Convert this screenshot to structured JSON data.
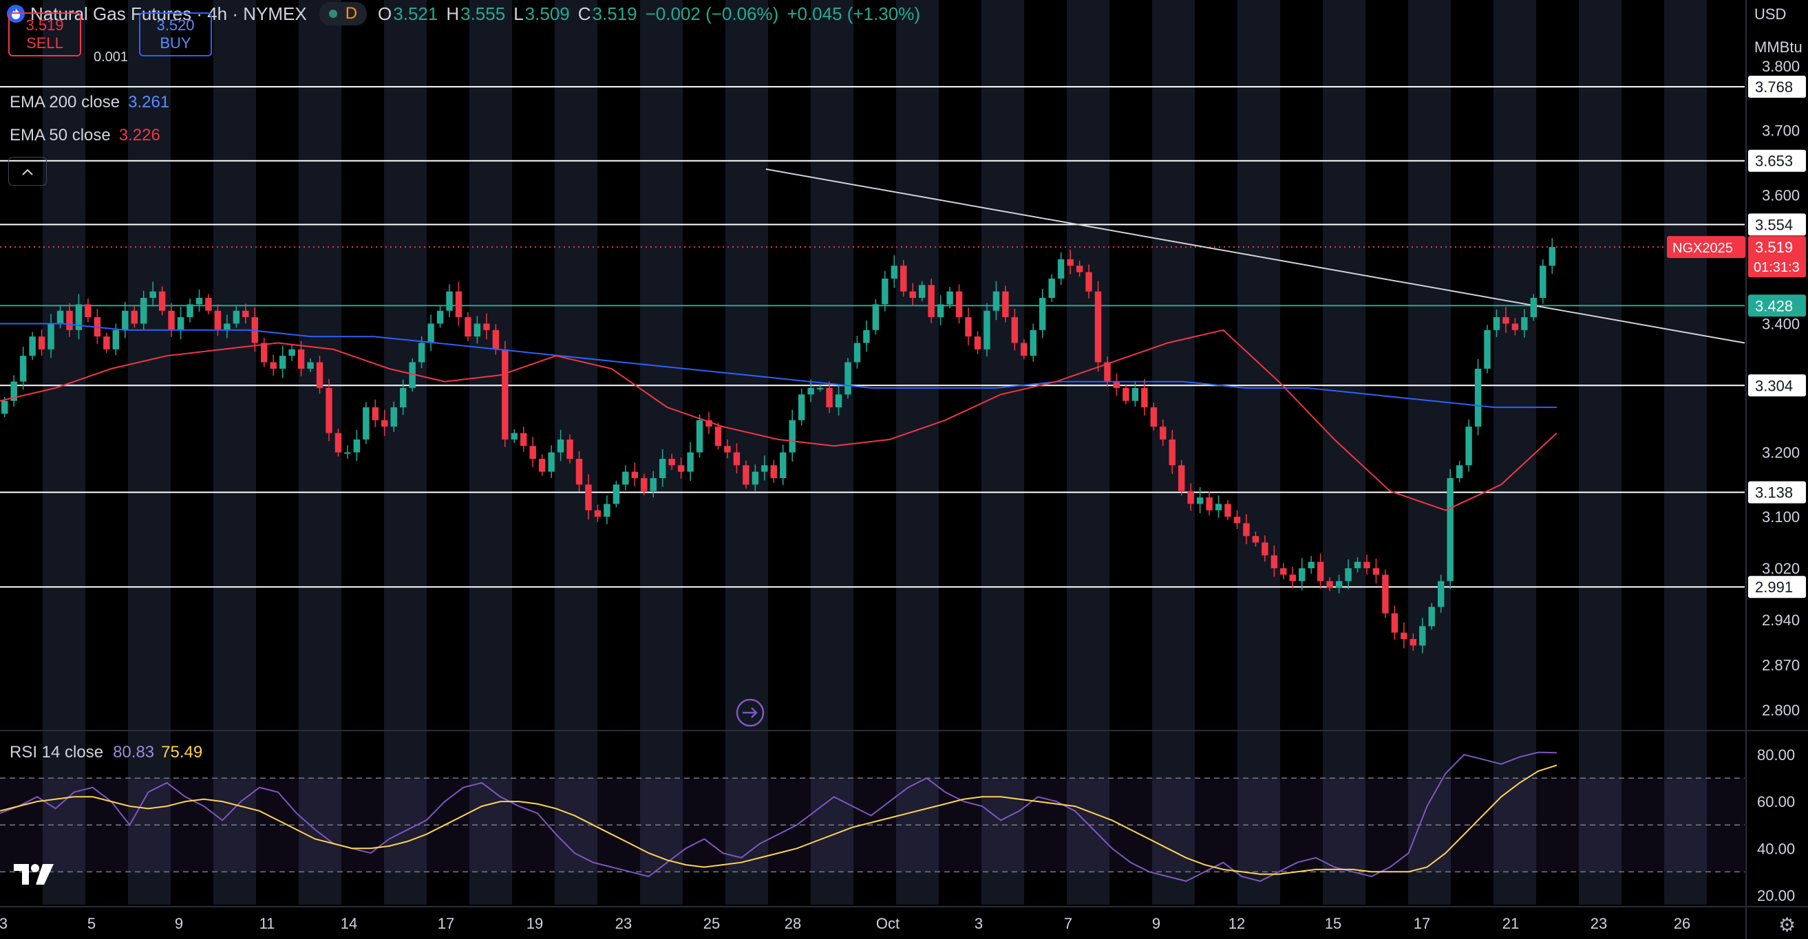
{
  "header": {
    "title": "Natural Gas Futures · 4h · NYMEX",
    "status_label": "D",
    "open_label": "O",
    "open": "3.521",
    "high_label": "H",
    "high": "3.555",
    "low_label": "L",
    "low": "3.509",
    "close_label": "C",
    "close": "3.519",
    "change": "−0.002 (−0.06%)",
    "change2": "+0.045 (+1.30%)"
  },
  "trade": {
    "sell_price": "3.519",
    "sell_label": "SELL",
    "spread": "0.001",
    "buy_price": "3.520",
    "buy_label": "BUY"
  },
  "indicators": {
    "ema200": {
      "label": "EMA 200 close",
      "value": "3.261",
      "color": "#2962ff"
    },
    "ema50": {
      "label": "EMA 50 close",
      "value": "3.226",
      "color": "#f23645"
    },
    "rsi": {
      "label": "RSI 14 close",
      "value": "80.83",
      "ma_value": "75.49",
      "color": "#7e57c2",
      "ma_color": "#ffd54f"
    }
  },
  "axis": {
    "currency": "USD",
    "unit": "MMBtu"
  },
  "colors": {
    "up": "#22ab94",
    "down": "#f23645",
    "background": "#000000",
    "grid": "#131722"
  },
  "icons": [
    "tradingview-logo",
    "gear-icon",
    "chevron-up-icon",
    "scroll-right-icon"
  ],
  "chart_data": [
    {
      "type": "candlestick",
      "title": "Natural Gas Futures · 4h · NYMEX",
      "x_tick_labels": [
        "3",
        "5",
        "9",
        "11",
        "14",
        "17",
        "19",
        "23",
        "25",
        "28",
        "Oct",
        "3",
        "7",
        "9",
        "12",
        "15",
        "17",
        "21",
        "23",
        "26"
      ],
      "y_tick_labels": [
        "3.800",
        "3.700",
        "3.600",
        "3.400",
        "3.200",
        "3.100",
        "3.020",
        "2.940",
        "2.870",
        "2.800"
      ],
      "ylim": [
        2.77,
        3.86
      ],
      "horizontal_levels": [
        {
          "value": 3.768,
          "label": "3.768",
          "color": "#ffffff"
        },
        {
          "value": 3.653,
          "label": "3.653",
          "color": "#ffffff"
        },
        {
          "value": 3.554,
          "label": "3.554",
          "color": "#ffffff"
        },
        {
          "value": 3.428,
          "label": "3.428",
          "color": "#22ab94"
        },
        {
          "value": 3.304,
          "label": "3.304",
          "color": "#ffffff"
        },
        {
          "value": 3.138,
          "label": "3.138",
          "color": "#ffffff"
        },
        {
          "value": 2.991,
          "label": "2.991",
          "color": "#ffffff"
        }
      ],
      "last_price": {
        "symbol": "NGX2025",
        "value": "3.519",
        "countdown": "01:31:3"
      },
      "trendline": {
        "start": [
          0.439,
          3.64
        ],
        "end": [
          1.0,
          3.37
        ]
      },
      "closes": [
        3.28,
        3.31,
        3.35,
        3.38,
        3.36,
        3.4,
        3.42,
        3.39,
        3.43,
        3.41,
        3.38,
        3.36,
        3.39,
        3.42,
        3.4,
        3.44,
        3.45,
        3.42,
        3.39,
        3.41,
        3.43,
        3.44,
        3.42,
        3.39,
        3.4,
        3.42,
        3.41,
        3.37,
        3.34,
        3.33,
        3.35,
        3.36,
        3.33,
        3.34,
        3.3,
        3.23,
        3.2,
        3.2,
        3.22,
        3.27,
        3.25,
        3.24,
        3.27,
        3.3,
        3.34,
        3.37,
        3.4,
        3.42,
        3.45,
        3.41,
        3.38,
        3.4,
        3.39,
        3.36,
        3.22,
        3.23,
        3.21,
        3.19,
        3.17,
        3.2,
        3.22,
        3.19,
        3.15,
        3.11,
        3.1,
        3.12,
        3.15,
        3.17,
        3.16,
        3.14,
        3.16,
        3.19,
        3.18,
        3.17,
        3.2,
        3.25,
        3.24,
        3.21,
        3.2,
        3.18,
        3.15,
        3.17,
        3.18,
        3.16,
        3.2,
        3.25,
        3.29,
        3.3,
        3.3,
        3.27,
        3.29,
        3.34,
        3.37,
        3.39,
        3.43,
        3.47,
        3.49,
        3.45,
        3.44,
        3.46,
        3.41,
        3.43,
        3.45,
        3.41,
        3.38,
        3.36,
        3.42,
        3.45,
        3.41,
        3.37,
        3.35,
        3.39,
        3.44,
        3.47,
        3.5,
        3.49,
        3.48,
        3.45,
        3.34,
        3.31,
        3.3,
        3.28,
        3.3,
        3.27,
        3.24,
        3.22,
        3.18,
        3.14,
        3.12,
        3.13,
        3.11,
        3.12,
        3.1,
        3.09,
        3.07,
        3.06,
        3.04,
        3.02,
        3.01,
        3.0,
        3.02,
        3.03,
        3.0,
        2.99,
        3.0,
        3.02,
        3.03,
        3.02,
        3.01,
        2.95,
        2.92,
        2.91,
        2.9,
        2.93,
        2.96,
        3.0,
        3.16,
        3.18,
        3.24,
        3.33,
        3.39,
        3.41,
        3.4,
        3.39,
        3.41,
        3.44,
        3.49,
        3.519
      ],
      "series": [
        {
          "name": "EMA 200 close",
          "color": "#2962ff",
          "values": [
            3.4,
            3.4,
            3.39,
            3.39,
            3.39,
            3.38,
            3.38,
            3.37,
            3.36,
            3.35,
            3.34,
            3.33,
            3.32,
            3.31,
            3.3,
            3.3,
            3.3,
            3.31,
            3.31,
            3.31,
            3.3,
            3.3,
            3.29,
            3.28,
            3.27,
            3.27
          ]
        },
        {
          "name": "EMA 50 close",
          "color": "#f23645",
          "values": [
            3.28,
            3.3,
            3.33,
            3.35,
            3.36,
            3.37,
            3.36,
            3.33,
            3.31,
            3.32,
            3.35,
            3.33,
            3.27,
            3.24,
            3.22,
            3.21,
            3.22,
            3.25,
            3.29,
            3.31,
            3.34,
            3.37,
            3.39,
            3.31,
            3.22,
            3.14,
            3.11,
            3.15,
            3.23
          ]
        }
      ]
    },
    {
      "type": "line",
      "title": "RSI 14 close",
      "y_tick_labels": [
        "80.00",
        "60.00",
        "40.00",
        "20.00"
      ],
      "ylim": [
        16,
        85
      ],
      "guide_levels": [
        70,
        50,
        30
      ],
      "series": [
        {
          "name": "RSI 14 close",
          "color": "#7e57c2",
          "values": [
            55,
            58,
            62,
            57,
            64,
            66,
            60,
            50,
            64,
            68,
            62,
            58,
            52,
            60,
            66,
            64,
            55,
            48,
            42,
            40,
            38,
            44,
            48,
            52,
            60,
            66,
            68,
            62,
            58,
            55,
            46,
            38,
            34,
            32,
            30,
            28,
            34,
            40,
            44,
            38,
            36,
            42,
            46,
            50,
            56,
            62,
            58,
            54,
            60,
            66,
            70,
            64,
            60,
            58,
            52,
            56,
            62,
            60,
            56,
            48,
            40,
            34,
            30,
            28,
            26,
            30,
            34,
            28,
            26,
            30,
            34,
            36,
            32,
            30,
            28,
            32,
            38,
            58,
            72,
            80,
            78,
            76,
            79,
            81,
            80.83
          ]
        },
        {
          "name": "",
          "color": "#ffd54f",
          "values": [
            56,
            58,
            60,
            61,
            62,
            62,
            60,
            58,
            57,
            58,
            60,
            61,
            60,
            58,
            56,
            52,
            48,
            44,
            42,
            40,
            40,
            41,
            43,
            46,
            50,
            54,
            58,
            60,
            60,
            59,
            57,
            54,
            50,
            46,
            42,
            38,
            35,
            33,
            32,
            33,
            34,
            36,
            38,
            40,
            43,
            46,
            49,
            51,
            53,
            55,
            57,
            59,
            61,
            62,
            62,
            61,
            60,
            59,
            58,
            55,
            52,
            48,
            44,
            40,
            36,
            33,
            31,
            30,
            29,
            29,
            30,
            31,
            31,
            31,
            30,
            30,
            30,
            32,
            38,
            46,
            54,
            62,
            68,
            73,
            75.49
          ]
        }
      ]
    }
  ]
}
